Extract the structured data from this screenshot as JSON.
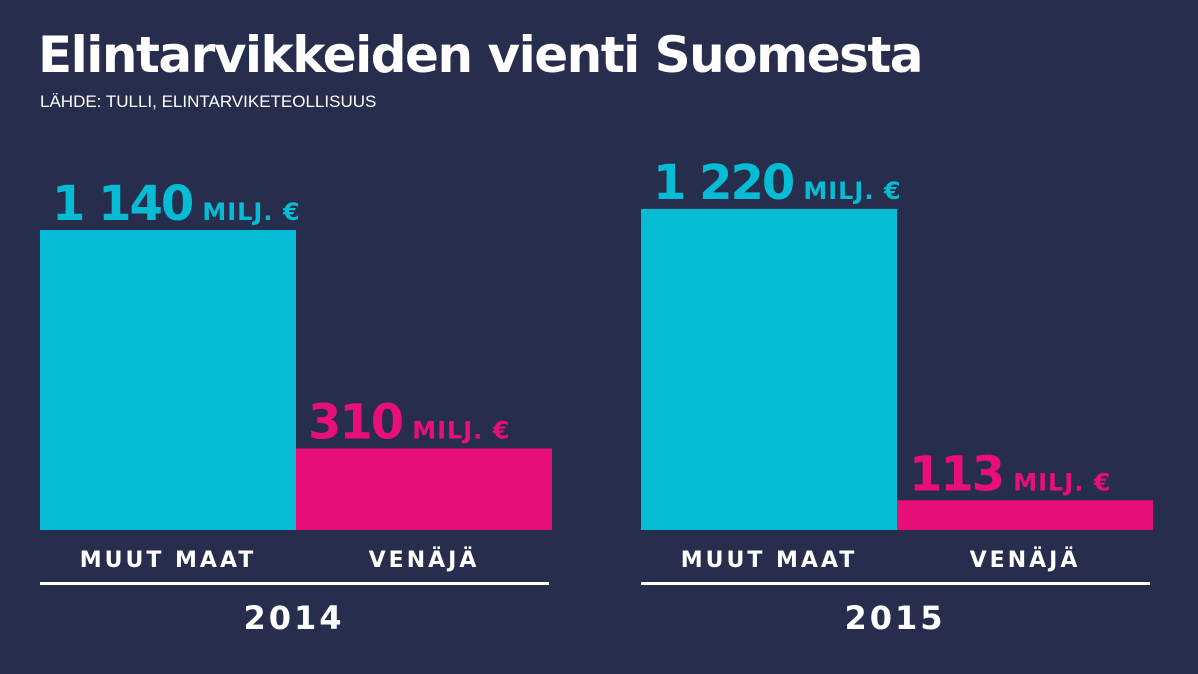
{
  "title": "Elintarvikkeiden vienti Suomesta",
  "source": "LÄHDE: TULLI, ELINTARVIKETEOLLISUUS",
  "colors": {
    "background": "#272d4c",
    "muut_maat": "#06bcd4",
    "venaja": "#e80f78",
    "text": "#ffffff"
  },
  "chart_data": {
    "type": "bar",
    "unit": "MILJ. €",
    "groups": [
      {
        "year": "2014",
        "bars": [
          {
            "category": "MUUT MAAT",
            "value": 1140,
            "value_label": "1 140"
          },
          {
            "category": "VENÄJÄ",
            "value": 310,
            "value_label": "310"
          }
        ]
      },
      {
        "year": "2015",
        "bars": [
          {
            "category": "MUUT MAAT",
            "value": 1220,
            "value_label": "1 220"
          },
          {
            "category": "VENÄJÄ",
            "value": 113,
            "value_label": "113"
          }
        ]
      }
    ]
  }
}
